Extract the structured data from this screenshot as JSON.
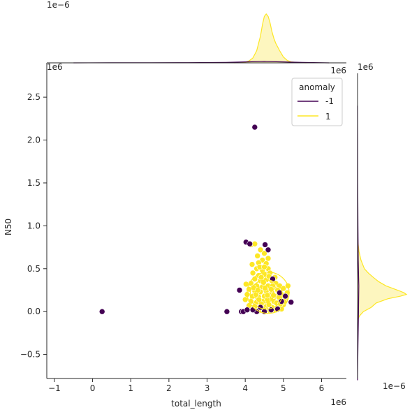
{
  "chart_data": {
    "type": "scatter",
    "joint": {
      "xlabel": "total_length",
      "ylabel": "N50",
      "xlim": [
        -1.2,
        6.65
      ],
      "ylim": [
        -0.78,
        2.9
      ],
      "x_offset": "1e6",
      "y_offset": "1e6",
      "x_ticks": [
        -1,
        0,
        1,
        2,
        3,
        4,
        5,
        6
      ],
      "y_ticks": [
        -0.5,
        0.0,
        0.5,
        1.0,
        1.5,
        2.0,
        2.5
      ],
      "x_tick_labels": [
        "−1",
        "0",
        "1",
        "2",
        "3",
        "4",
        "5",
        "6"
      ],
      "y_tick_labels": [
        "−0.5",
        "0.0",
        "0.5",
        "1.0",
        "1.5",
        "2.0",
        "2.5"
      ],
      "grid": false
    },
    "legend": {
      "title": "anomaly",
      "placement": "top-right",
      "entries": [
        {
          "label": "-1",
          "color": "#440154"
        },
        {
          "label": "1",
          "color": "#fde725"
        }
      ]
    },
    "series": [
      {
        "name": "-1",
        "color": "#440154",
        "points": [
          [
            0.25,
            0.0
          ],
          [
            4.25,
            2.15
          ],
          [
            3.52,
            0.0
          ],
          [
            3.85,
            0.25
          ],
          [
            3.9,
            0.0
          ],
          [
            3.95,
            0.0
          ],
          [
            4.02,
            0.81
          ],
          [
            4.12,
            0.79
          ],
          [
            4.52,
            0.78
          ],
          [
            4.6,
            0.72
          ],
          [
            5.2,
            0.11
          ],
          [
            4.95,
            0.12
          ],
          [
            4.05,
            0.02
          ],
          [
            4.85,
            0.03
          ],
          [
            4.72,
            0.38
          ],
          [
            4.68,
            0.02
          ],
          [
            4.3,
            0.0
          ],
          [
            4.2,
            0.02
          ],
          [
            5.05,
            0.18
          ],
          [
            4.4,
            0.05
          ],
          [
            4.5,
            0.0
          ],
          [
            4.9,
            0.22
          ]
        ]
      },
      {
        "name": "1",
        "color": "#fde725",
        "points": [
          [
            4.15,
            0.78
          ],
          [
            4.25,
            0.79
          ],
          [
            4.5,
            0.68
          ],
          [
            4.45,
            0.6
          ],
          [
            4.35,
            0.57
          ],
          [
            4.55,
            0.56
          ],
          [
            4.3,
            0.5
          ],
          [
            4.45,
            0.48
          ],
          [
            4.6,
            0.5
          ],
          [
            4.2,
            0.45
          ],
          [
            4.35,
            0.42
          ],
          [
            4.5,
            0.43
          ],
          [
            4.65,
            0.45
          ],
          [
            4.25,
            0.38
          ],
          [
            4.4,
            0.36
          ],
          [
            4.55,
            0.37
          ],
          [
            4.7,
            0.36
          ],
          [
            4.8,
            0.33
          ],
          [
            4.15,
            0.33
          ],
          [
            4.3,
            0.3
          ],
          [
            4.45,
            0.29
          ],
          [
            4.6,
            0.3
          ],
          [
            4.75,
            0.28
          ],
          [
            4.9,
            0.3
          ],
          [
            4.1,
            0.26
          ],
          [
            4.25,
            0.24
          ],
          [
            4.4,
            0.23
          ],
          [
            4.55,
            0.24
          ],
          [
            4.7,
            0.22
          ],
          [
            4.85,
            0.25
          ],
          [
            5.0,
            0.27
          ],
          [
            5.12,
            0.3
          ],
          [
            4.05,
            0.2
          ],
          [
            4.2,
            0.18
          ],
          [
            4.35,
            0.17
          ],
          [
            4.5,
            0.18
          ],
          [
            4.65,
            0.16
          ],
          [
            4.8,
            0.18
          ],
          [
            4.95,
            0.2
          ],
          [
            5.1,
            0.22
          ],
          [
            4.0,
            0.14
          ],
          [
            4.15,
            0.12
          ],
          [
            4.3,
            0.11
          ],
          [
            4.45,
            0.12
          ],
          [
            4.6,
            0.1
          ],
          [
            4.75,
            0.12
          ],
          [
            4.9,
            0.14
          ],
          [
            5.05,
            0.15
          ],
          [
            4.1,
            0.07
          ],
          [
            4.25,
            0.06
          ],
          [
            4.4,
            0.05
          ],
          [
            4.55,
            0.06
          ],
          [
            4.7,
            0.05
          ],
          [
            4.85,
            0.07
          ],
          [
            5.0,
            0.08
          ],
          [
            4.2,
            0.02
          ],
          [
            4.35,
            0.01
          ],
          [
            4.5,
            0.02
          ],
          [
            4.65,
            0.01
          ],
          [
            4.8,
            0.02
          ],
          [
            4.95,
            0.03
          ],
          [
            4.32,
            0.65
          ],
          [
            4.4,
            0.72
          ],
          [
            4.38,
            0.52
          ],
          [
            4.62,
            0.41
          ],
          [
            4.28,
            0.2
          ],
          [
            4.48,
            0.34
          ],
          [
            4.58,
            0.14
          ],
          [
            4.72,
            0.3
          ],
          [
            4.82,
            0.1
          ],
          [
            4.42,
            0.09
          ],
          [
            4.22,
            0.28
          ],
          [
            4.68,
            0.26
          ],
          [
            4.52,
            0.27
          ],
          [
            4.36,
            0.14
          ],
          [
            4.88,
            0.17
          ],
          [
            4.02,
            0.32
          ],
          [
            4.78,
            0.4
          ],
          [
            4.6,
            0.62
          ],
          [
            4.5,
            0.52
          ],
          [
            4.18,
            0.55
          ],
          [
            4.58,
            0.19
          ],
          [
            4.42,
            0.4
          ],
          [
            4.62,
            0.08
          ],
          [
            4.92,
            0.09
          ],
          [
            4.33,
            0.25
          ],
          [
            4.74,
            0.19
          ],
          [
            5.02,
            0.12
          ]
        ]
      }
    ],
    "top_marginal": {
      "offset_label": "1e−6",
      "curves": [
        {
          "name": "1",
          "color": "#fde725",
          "fill": "#fdf5b8",
          "x": [
            3.7,
            3.9,
            4.0,
            4.1,
            4.2,
            4.3,
            4.4,
            4.45,
            4.5,
            4.55,
            4.6,
            4.65,
            4.7,
            4.75,
            4.8,
            4.9,
            5.0,
            5.1,
            5.2,
            5.4,
            5.6
          ],
          "density": [
            0.0,
            0.005,
            0.015,
            0.04,
            0.1,
            0.25,
            0.55,
            0.78,
            0.95,
            1.0,
            0.95,
            0.82,
            0.64,
            0.5,
            0.4,
            0.25,
            0.12,
            0.05,
            0.02,
            0.005,
            0.0
          ]
        },
        {
          "name": "-1",
          "color": "#440154",
          "fill": "none",
          "x": [
            -0.5,
            0.5,
            1.5,
            2.5,
            3.5,
            4.0,
            4.5,
            5.0,
            5.5,
            6.2
          ],
          "density": [
            0.0,
            0.002,
            0.003,
            0.004,
            0.01,
            0.02,
            0.03,
            0.02,
            0.008,
            0.0
          ]
        }
      ]
    },
    "right_marginal": {
      "offset_label": "1e−6",
      "curves": [
        {
          "name": "1",
          "color": "#fde725",
          "fill": "#fdf5b8",
          "y": [
            -0.1,
            -0.05,
            0.0,
            0.05,
            0.1,
            0.15,
            0.18,
            0.2,
            0.22,
            0.25,
            0.3,
            0.35,
            0.4,
            0.45,
            0.5,
            0.6,
            0.7,
            0.8,
            0.9
          ],
          "density": [
            0.0,
            0.04,
            0.12,
            0.28,
            0.38,
            0.62,
            0.88,
            1.0,
            0.95,
            0.82,
            0.58,
            0.43,
            0.32,
            0.22,
            0.14,
            0.07,
            0.03,
            0.01,
            0.0
          ]
        },
        {
          "name": "-1",
          "color": "#440154",
          "fill": "none",
          "y": [
            -0.8,
            -0.4,
            0.0,
            0.3,
            0.6,
            1.0,
            1.5,
            2.0,
            2.4
          ],
          "density": [
            0.0,
            0.008,
            0.02,
            0.025,
            0.015,
            0.008,
            0.004,
            0.003,
            0.0
          ]
        }
      ]
    }
  }
}
